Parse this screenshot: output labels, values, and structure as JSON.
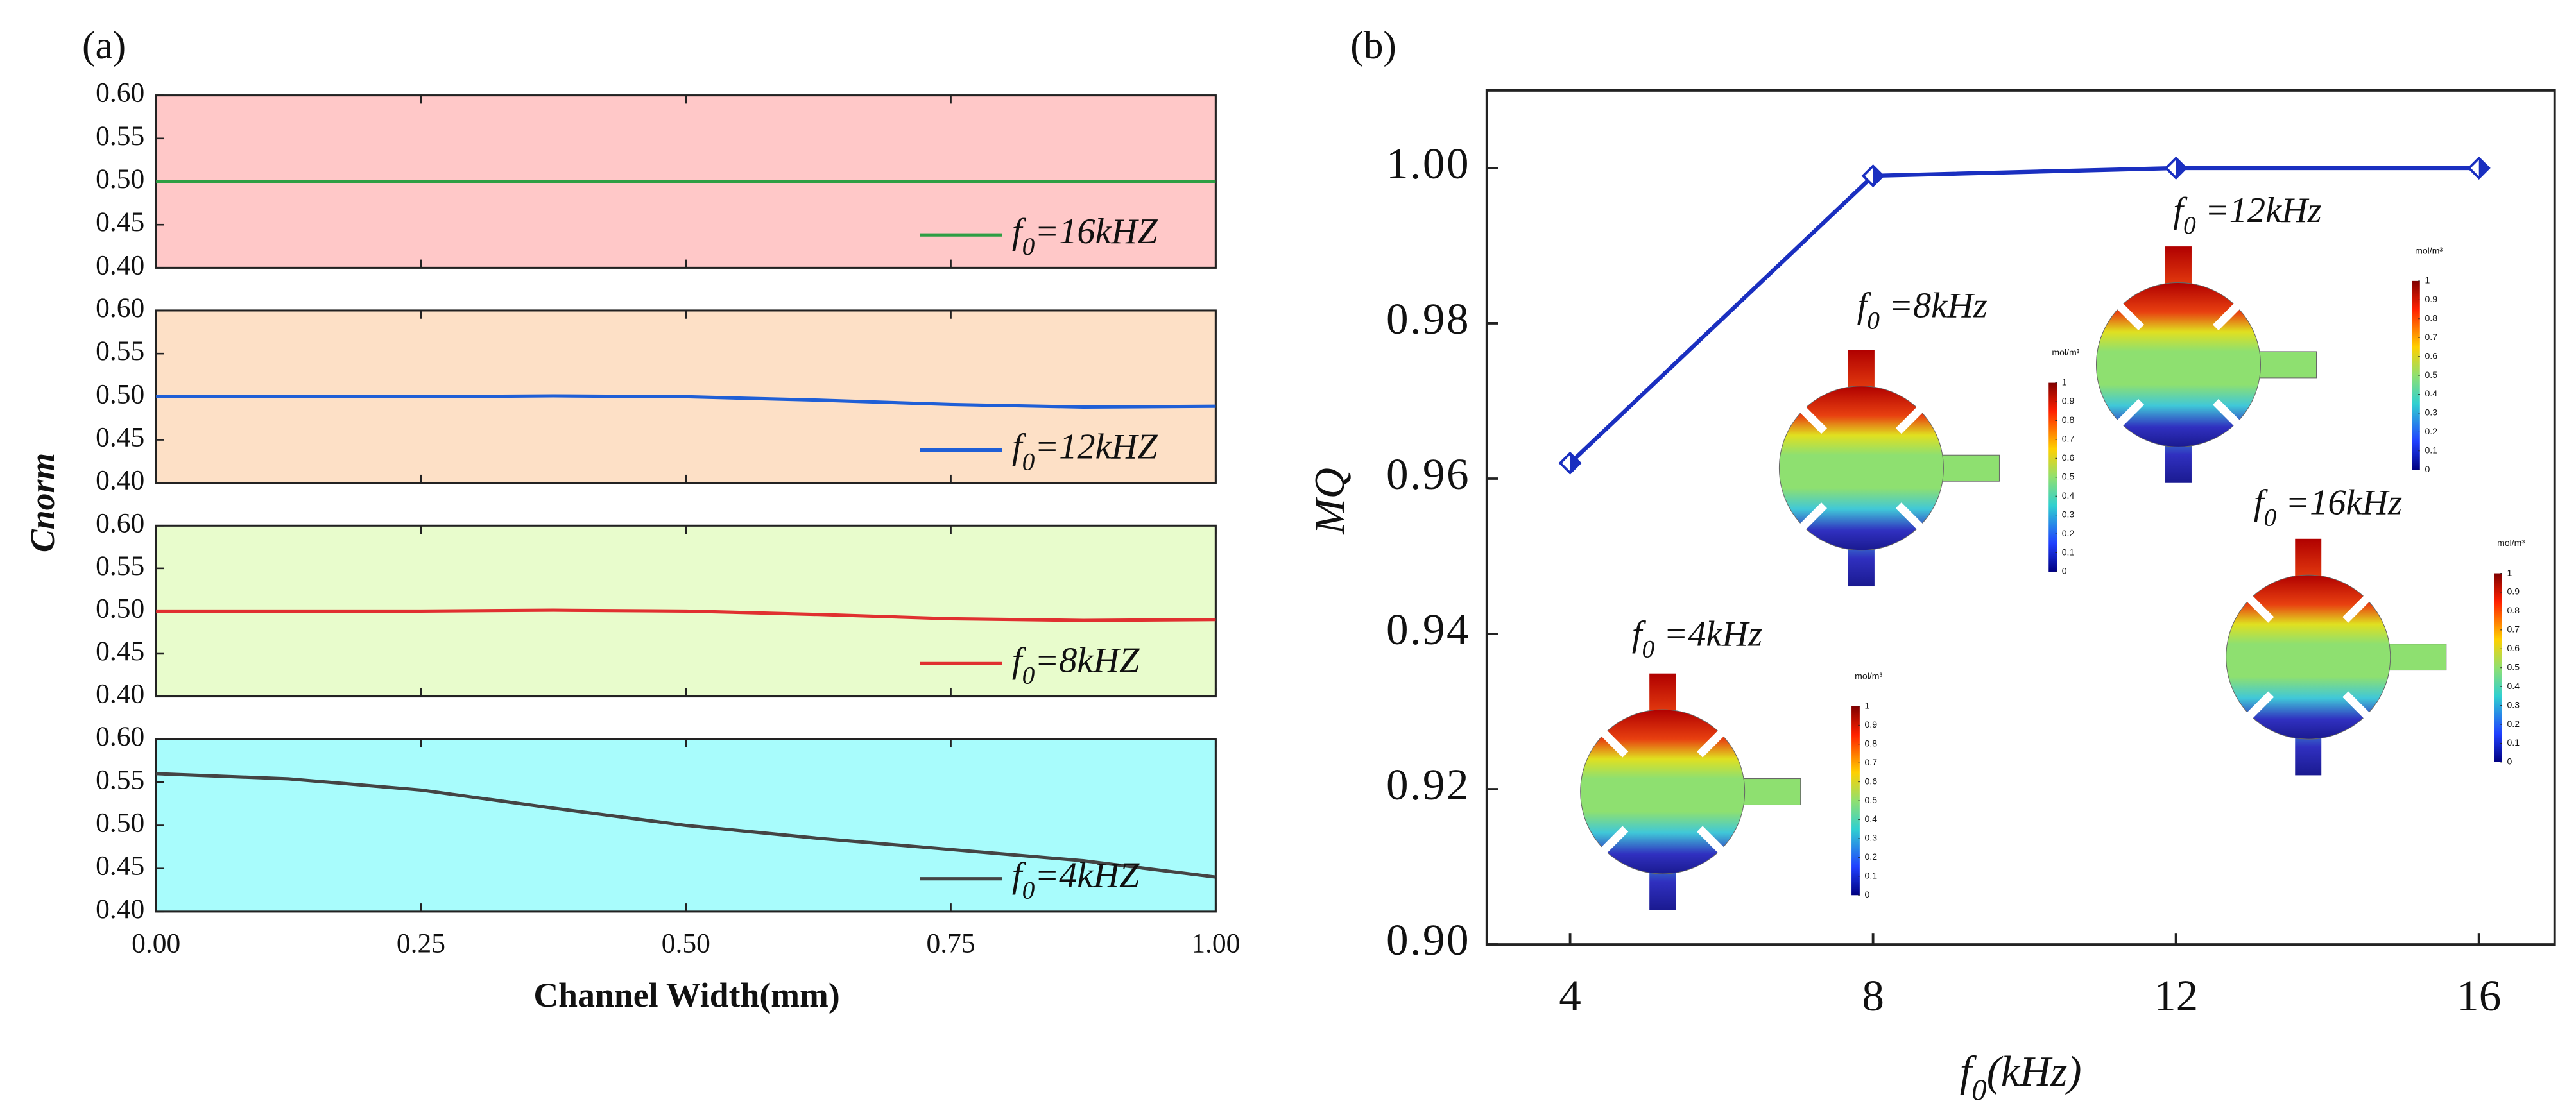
{
  "chart_data": [
    {
      "type": "line",
      "panel_label": "(a)",
      "ylabel": "Cnorm",
      "facecolor": "#ffc8c8",
      "legend": "lower right",
      "x": [
        0,
        0.125,
        0.25,
        0.375,
        0.5,
        0.625,
        0.75,
        0.875,
        1
      ],
      "series": [
        {
          "name": "f0=16kHZ",
          "color": "#2e9e44",
          "values": [
            0.5,
            0.5,
            0.5,
            0.5,
            0.5,
            0.5,
            0.5,
            0.5,
            0.5
          ]
        }
      ],
      "xlim": [
        0,
        1
      ],
      "ylim": [
        0.4,
        0.6
      ],
      "yticks": [
        {
          "value": 0.4,
          "label": "0.40"
        },
        {
          "value": 0.45,
          "label": "0.45"
        },
        {
          "value": 0.5,
          "label": "0.50"
        },
        {
          "value": 0.55,
          "label": "0.55"
        },
        {
          "value": 0.6,
          "label": "0.60"
        }
      ]
    },
    {
      "type": "line",
      "facecolor": "#fde0c6",
      "legend": "lower right",
      "x": [
        0,
        0.125,
        0.25,
        0.375,
        0.5,
        0.625,
        0.75,
        0.875,
        1
      ],
      "series": [
        {
          "name": "f0=12kHZ",
          "color": "#1f5fd6",
          "values": [
            0.5,
            0.5,
            0.5,
            0.501,
            0.5,
            0.496,
            0.491,
            0.488,
            0.489
          ]
        }
      ],
      "xlim": [
        0,
        1
      ],
      "ylim": [
        0.4,
        0.6
      ],
      "yticks": [
        {
          "value": 0.4,
          "label": "0.40"
        },
        {
          "value": 0.45,
          "label": "0.45"
        },
        {
          "value": 0.5,
          "label": "0.50"
        },
        {
          "value": 0.55,
          "label": "0.55"
        },
        {
          "value": 0.6,
          "label": "0.60"
        }
      ]
    },
    {
      "type": "line",
      "facecolor": "#e8fccc",
      "legend": "lower right",
      "x": [
        0,
        0.125,
        0.25,
        0.375,
        0.5,
        0.625,
        0.75,
        0.875,
        1
      ],
      "series": [
        {
          "name": "f0=8kHZ",
          "color": "#e03030",
          "values": [
            0.5,
            0.5,
            0.5,
            0.501,
            0.5,
            0.496,
            0.491,
            0.489,
            0.49
          ]
        }
      ],
      "xlim": [
        0,
        1
      ],
      "ylim": [
        0.4,
        0.6
      ],
      "yticks": [
        {
          "value": 0.4,
          "label": "0.40"
        },
        {
          "value": 0.45,
          "label": "0.45"
        },
        {
          "value": 0.5,
          "label": "0.50"
        },
        {
          "value": 0.55,
          "label": "0.55"
        },
        {
          "value": 0.6,
          "label": "0.60"
        }
      ]
    },
    {
      "type": "line",
      "facecolor": "#a8fcfc",
      "legend": "lower right",
      "xlabel": "Channel Width(mm)",
      "x": [
        0,
        0.125,
        0.25,
        0.375,
        0.5,
        0.625,
        0.75,
        0.875,
        1
      ],
      "series": [
        {
          "name": "f0=4kHZ",
          "color": "#444444",
          "values": [
            0.56,
            0.554,
            0.541,
            0.52,
            0.5,
            0.485,
            0.472,
            0.459,
            0.44
          ]
        }
      ],
      "xlim": [
        0,
        1
      ],
      "ylim": [
        0.4,
        0.6
      ],
      "yticks": [
        {
          "value": 0.4,
          "label": "0.40"
        },
        {
          "value": 0.45,
          "label": "0.45"
        },
        {
          "value": 0.5,
          "label": "0.50"
        },
        {
          "value": 0.55,
          "label": "0.55"
        },
        {
          "value": 0.6,
          "label": "0.60"
        }
      ],
      "xticks": [
        {
          "value": 0,
          "label": "0.00"
        },
        0.25,
        {
          "value": 0.5,
          "label": "0.50"
        },
        0.75,
        {
          "value": 1,
          "label": "1.00"
        }
      ]
    },
    {
      "type": "line",
      "panel_label": "(b)",
      "xlabel": "f0(kHz)",
      "ylabel": "MQ",
      "x": [
        4,
        8,
        12,
        16
      ],
      "values": [
        0.962,
        0.999,
        1.0,
        1.0
      ],
      "color": "#1a2fc0",
      "xlim": [
        2.9,
        17
      ],
      "ylim": [
        0.9,
        1.01
      ],
      "xticks": [
        4,
        8,
        12,
        16
      ],
      "yticks": [
        {
          "value": 0.9,
          "label": "0.90"
        },
        {
          "value": 0.92,
          "label": "0.92"
        },
        {
          "value": 0.94,
          "label": "0.94"
        },
        {
          "value": 0.96,
          "label": "0.96"
        },
        {
          "value": 0.98,
          "label": "0.98"
        },
        {
          "value": 1.0,
          "label": "1.00"
        }
      ],
      "insets": [
        {
          "label": "f0 =4kHz",
          "colorbar_label": "mol/m³",
          "colorbar_ticks": [
            1,
            0.9,
            0.8,
            0.7,
            0.6,
            0.5,
            0.4,
            0.3,
            0.2,
            0.1,
            0
          ]
        },
        {
          "label": "f0 =8kHz",
          "colorbar_label": "mol/m³",
          "colorbar_ticks": [
            1,
            0.9,
            0.8,
            0.7,
            0.6,
            0.5,
            0.4,
            0.3,
            0.2,
            0.1,
            0
          ]
        },
        {
          "label": "f0 =12kHz",
          "colorbar_label": "mol/m³",
          "colorbar_ticks": [
            1,
            0.9,
            0.8,
            0.7,
            0.6,
            0.5,
            0.4,
            0.3,
            0.2,
            0.1,
            0
          ]
        },
        {
          "label": "f0 =16kHz",
          "colorbar_label": "mol/m³",
          "colorbar_ticks": [
            1,
            0.9,
            0.8,
            0.7,
            0.6,
            0.5,
            0.4,
            0.3,
            0.2,
            0.1,
            0
          ]
        }
      ]
    }
  ]
}
